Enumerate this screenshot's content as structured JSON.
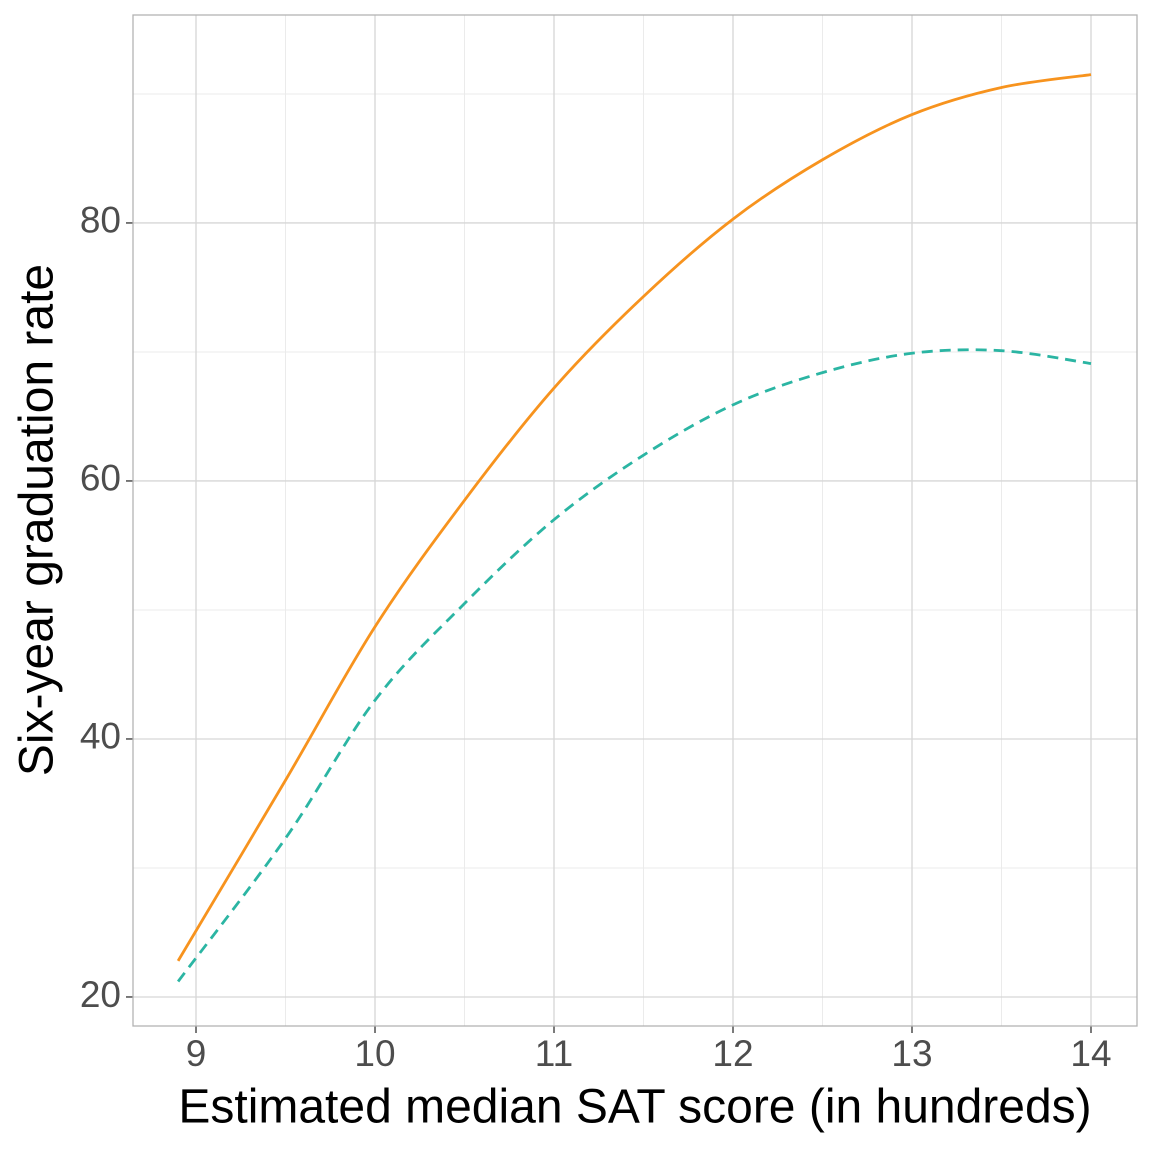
{
  "chart_data": {
    "type": "line",
    "x_label": "Estimated median SAT score (in hundreds)",
    "y_label": "Six-year graduation rate",
    "x": [
      8.9,
      9.5,
      10,
      10.5,
      11,
      11.5,
      12,
      12.5,
      13,
      13.5,
      14
    ],
    "series": [
      {
        "color": "#F7931E",
        "dash": "solid",
        "values": [
          22.8,
          36.8,
          48.7,
          58.5,
          67.2,
          74.3,
          80.3,
          84.9,
          88.4,
          90.5,
          91.5
        ]
      },
      {
        "color": "#2BB5A3",
        "dash": "dashed",
        "values": [
          21.2,
          32.3,
          43.0,
          50.5,
          57.0,
          62.0,
          65.9,
          68.4,
          69.9,
          70.1,
          69.1
        ]
      }
    ],
    "xlim": [
      8.648,
      14.257
    ],
    "ylim": [
      17.75,
      96.12
    ],
    "xticks": [
      9,
      10,
      11,
      12,
      13,
      14
    ],
    "yticks": [
      20,
      40,
      60,
      80
    ],
    "x_minor_grid": [
      9.5,
      10.5,
      11.5,
      12.5,
      13.5
    ],
    "y_minor_grid": [
      30,
      50,
      70,
      90
    ],
    "grid": true
  }
}
